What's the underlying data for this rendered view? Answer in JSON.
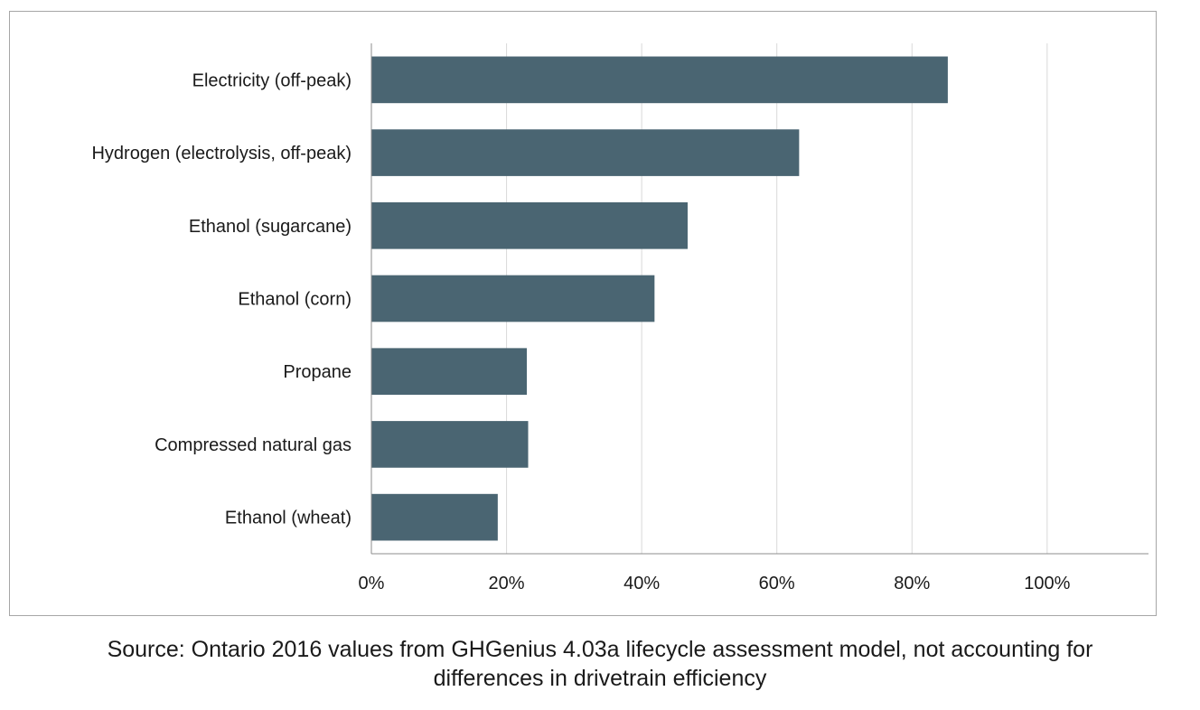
{
  "chart_data": {
    "type": "bar",
    "orientation": "horizontal",
    "categories": [
      "Electricity (off-peak)",
      "Hydrogen (electrolysis, off-peak)",
      "Ethanol (sugarcane)",
      "Ethanol (corn)",
      "Propane",
      "Compressed natural gas",
      "Ethanol (wheat)"
    ],
    "values": [
      85.3,
      63.3,
      46.8,
      41.9,
      23.0,
      23.2,
      18.7
    ],
    "value_unit": "%",
    "xlim": [
      0,
      115
    ],
    "x_ticks": [
      0,
      20,
      40,
      60,
      80,
      100
    ],
    "x_tick_labels": [
      "0%",
      "20%",
      "40%",
      "60%",
      "80%",
      "100%"
    ],
    "title": "",
    "xlabel": "",
    "ylabel": "",
    "grid": "vertical",
    "legend": "none",
    "bar_color": "#4a6572",
    "grid_color": "#d9d9d9",
    "axis_color": "#8c8c8c"
  },
  "source_note": {
    "line1": "Source: Ontario 2016 values from GHGenius 4.03a lifecycle assessment model, not accounting for",
    "line2": "differences in drivetrain efficiency"
  }
}
